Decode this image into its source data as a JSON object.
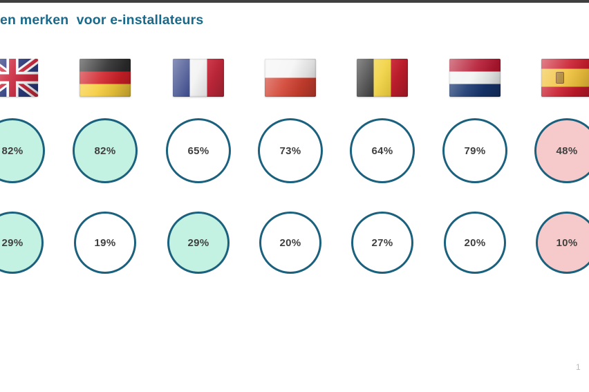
{
  "slide": {
    "title": "en merken  voor e-installateurs",
    "page_number": "1"
  },
  "colors": {
    "top_bar": "#404040",
    "title_text": "#186A8C",
    "circle_border": "#1B617D",
    "circle_fill_default": "#FFFFFF",
    "circle_fill_high": "#C3F2E2",
    "circle_fill_low": "#F6CACA",
    "value_text": "#3F3F3F",
    "page_number_text": "#B8BABC"
  },
  "chart_data": {
    "type": "table",
    "title": "en merken  voor e-installateurs",
    "unit": "%",
    "categories": [
      "United Kingdom",
      "Germany",
      "France",
      "Poland",
      "Belgium",
      "Netherlands",
      "Spain"
    ],
    "country_ids": [
      "uk",
      "de",
      "fr",
      "pl",
      "be",
      "nl",
      "es"
    ],
    "flag_icons": [
      "uk-flag-icon",
      "germany-flag-icon",
      "france-flag-icon",
      "poland-flag-icon",
      "belgium-flag-icon",
      "netherlands-flag-icon",
      "spain-flag-icon"
    ],
    "series": [
      {
        "name": "row_1",
        "values": [
          82,
          82,
          65,
          73,
          64,
          79,
          48
        ],
        "highlight": [
          "high",
          "high",
          "none",
          "none",
          "none",
          "none",
          "low"
        ]
      },
      {
        "name": "row_2",
        "values": [
          29,
          19,
          29,
          20,
          27,
          20,
          10
        ],
        "highlight": [
          "high",
          "none",
          "high",
          "none",
          "none",
          "none",
          "low"
        ]
      }
    ],
    "layout": {
      "legend": "off",
      "grid": "off",
      "highlight_meaning": {
        "high": "mint green filled circle",
        "low": "pink filled circle",
        "none": "white circle"
      }
    }
  }
}
